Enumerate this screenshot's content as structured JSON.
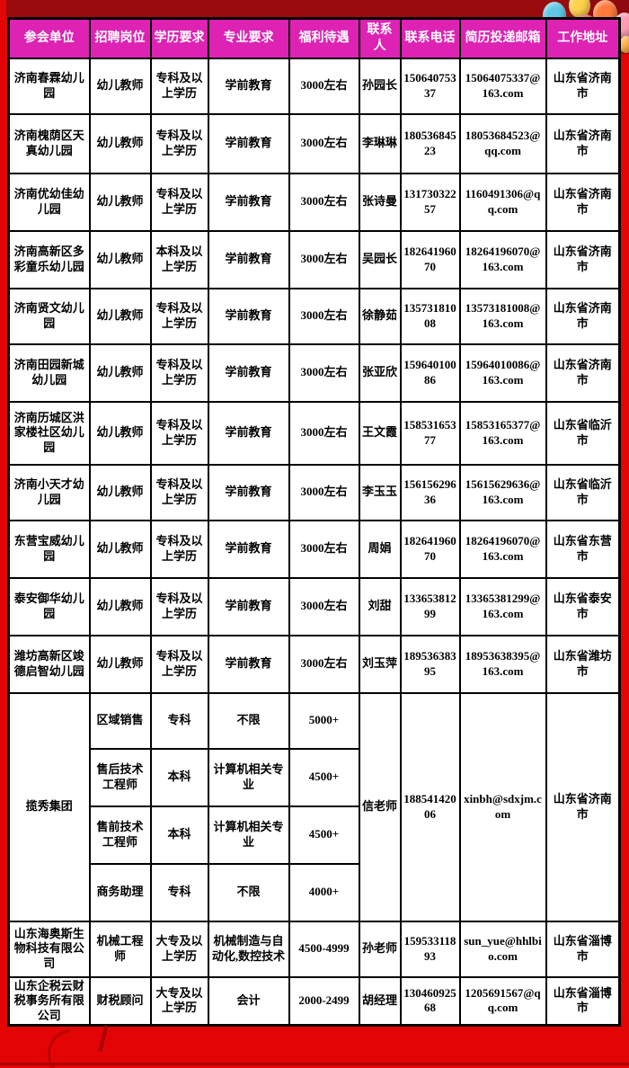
{
  "colors": {
    "header_bg": "#dd22b4",
    "header_text": "#ffffff",
    "cell_text": "#000000",
    "cell_bg": "#ffffff",
    "table_border": "#000000",
    "page_red": "#e30505",
    "band_dark_red": "#9a0b0d"
  },
  "decorations": {
    "balloon_colors": [
      "#5ec8e6",
      "#ffd24d",
      "#ff7a3b",
      "#e63434",
      "#ff9db5",
      "#6fd3c0",
      "#f3c1d6",
      "#ffb347"
    ]
  },
  "table": {
    "headers": [
      "参会单位",
      "招聘岗位",
      "学历要求",
      "专业要求",
      "福利待遇",
      "联系人",
      "联系电话",
      "简历投递邮箱",
      "工作地址"
    ],
    "rows": [
      {
        "unit": "济南春霖幼儿园",
        "position": "幼儿教师",
        "degree": "专科及以上学历",
        "major": "学前教育",
        "salary": "3000左右",
        "contact": "孙园长",
        "phone": "15064075337",
        "email": "15064075337@163.com",
        "address": "山东省济南市"
      },
      {
        "unit": "济南槐荫区天真幼儿园",
        "position": "幼儿教师",
        "degree": "专科及以上学历",
        "major": "学前教育",
        "salary": "3000左右",
        "contact": "李琳琳",
        "phone": "18053684523",
        "email": "18053684523@qq.com",
        "address": "山东省济南市"
      },
      {
        "unit": "济南优幼佳幼儿园",
        "position": "幼儿教师",
        "degree": "专科及以上学历",
        "major": "学前教育",
        "salary": "3000左右",
        "contact": "张诗曼",
        "phone": "13173032257",
        "email": "1160491306@qq.com",
        "address": "山东省济南市"
      },
      {
        "unit": "济南高新区多彩童乐幼儿园",
        "position": "幼儿教师",
        "degree": "本科及以上学历",
        "major": "学前教育",
        "salary": "3000左右",
        "contact": "吴园长",
        "phone": "18264196070",
        "email": "18264196070@163.com",
        "address": "山东省济南市"
      },
      {
        "unit": "济南贤文幼儿园",
        "position": "幼儿教师",
        "degree": "专科及以上学历",
        "major": "学前教育",
        "salary": "3000左右",
        "contact": "徐静茹",
        "phone": "13573181008",
        "email": "13573181008@163.com",
        "address": "山东省济南市"
      },
      {
        "unit": "济南田园新城幼儿园",
        "position": "幼儿教师",
        "degree": "专科及以上学历",
        "major": "学前教育",
        "salary": "3000左右",
        "contact": "张亚欣",
        "phone": "15964010086",
        "email": "15964010086@163.com",
        "address": "山东省济南市"
      },
      {
        "unit": "济南历城区洪家楼社区幼儿园",
        "position": "幼儿教师",
        "degree": "专科及以上学历",
        "major": "学前教育",
        "salary": "3000左右",
        "contact": "王文霞",
        "phone": "15853165377",
        "email": "15853165377@163.com",
        "address": "山东省临沂市"
      },
      {
        "unit": "济南小天才幼儿园",
        "position": "幼儿教师",
        "degree": "专科及以上学历",
        "major": "学前教育",
        "salary": "3000左右",
        "contact": "李玉玉",
        "phone": "15615629636",
        "email": "15615629636@163.com",
        "address": "山东省临沂市"
      },
      {
        "unit": "东营宝威幼儿园",
        "position": "幼儿教师",
        "degree": "专科及以上学历",
        "major": "学前教育",
        "salary": "3000左右",
        "contact": "周娟",
        "phone": "18264196070",
        "email": "18264196070@163.com",
        "address": "山东省东营市"
      },
      {
        "unit": "泰安御华幼儿园",
        "position": "幼儿教师",
        "degree": "专科及以上学历",
        "major": "学前教育",
        "salary": "3000左右",
        "contact": "刘甜",
        "phone": "13365381299",
        "email": "13365381299@163.com",
        "address": "山东省泰安市"
      },
      {
        "unit": "潍坊高新区竣德启智幼儿园",
        "position": "幼儿教师",
        "degree": "专科及以上学历",
        "major": "学前教育",
        "salary": "3000左右",
        "contact": "刘玉萍",
        "phone": "18953638395",
        "email": "18953638395@163.com",
        "address": "山东省潍坊市"
      },
      {
        "unit": "山东海奥斯生物科技有限公司",
        "position": "机械工程师",
        "degree": "大专及以上学历",
        "major": "机械制造与自动化,数控技术",
        "salary": "4500-4999",
        "contact": "孙老师",
        "phone": "15953311893",
        "email": "sun_yue@hhlbio.com",
        "address": "山东省淄博市"
      },
      {
        "unit": "山东企税云财税事务所有限公司",
        "position": "财税顾问",
        "degree": "大专及以上学历",
        "major": "会计",
        "salary": "2000-2499",
        "contact": "胡经理",
        "phone": "13046092568",
        "email": "1205691567@qq.com",
        "address": "山东省淄博市"
      }
    ],
    "group": {
      "company": "揽秀集团",
      "jobs": [
        {
          "position": "区域销售",
          "degree": "专科",
          "major": "不限",
          "salary": "5000+"
        },
        {
          "position": "售后技术工程师",
          "degree": "本科",
          "major": "计算机相关专业",
          "salary": "4500+"
        },
        {
          "position": "售前技术工程师",
          "degree": "本科",
          "major": "计算机相关专业",
          "salary": "4500+"
        },
        {
          "position": "商务助理",
          "degree": "专科",
          "major": "不限",
          "salary": "4000+"
        }
      ],
      "contact": "信老师",
      "phone": "18854142006",
      "email": "xinbh@sdxjm.com",
      "address": "山东省济南市"
    }
  }
}
